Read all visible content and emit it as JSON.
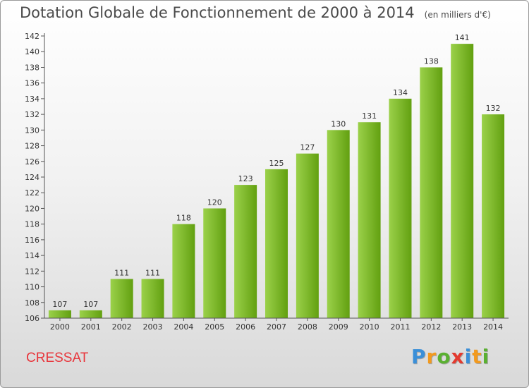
{
  "header": {
    "title": "Dotation Globale de Fonctionnement de 2000 à 2014",
    "unit": "(en milliers d'€)"
  },
  "footer": {
    "commune": "CRESSAT",
    "logo_letters": [
      "P",
      "r",
      "o",
      "x",
      "i",
      "t",
      "i"
    ],
    "logo_colors": [
      "#3a8fd8",
      "#f29a1f",
      "#5ab031",
      "#e33a2f",
      "#3a8fd8",
      "#f29a1f",
      "#5ab031"
    ]
  },
  "colors": {
    "bar_light": "#9bd14a",
    "bar_dark": "#62a010",
    "axis": "#555555",
    "grid": "#dddddd"
  },
  "chart_data": {
    "type": "bar",
    "title": "Dotation Globale de Fonctionnement de 2000 à 2014",
    "subtitle": "(en milliers d'€)",
    "categories": [
      "2000",
      "2001",
      "2002",
      "2003",
      "2004",
      "2005",
      "2006",
      "2007",
      "2008",
      "2009",
      "2010",
      "2011",
      "2012",
      "2013",
      "2014"
    ],
    "values": [
      107,
      107,
      111,
      111,
      118,
      120,
      123,
      125,
      127,
      130,
      131,
      134,
      138,
      141,
      132
    ],
    "ylim": [
      106,
      142
    ],
    "yticks": [
      106,
      108,
      110,
      112,
      114,
      116,
      118,
      120,
      122,
      124,
      126,
      128,
      130,
      132,
      134,
      136,
      138,
      140,
      142
    ],
    "xlabel": "",
    "ylabel": "",
    "grid": false,
    "legend": "none"
  }
}
